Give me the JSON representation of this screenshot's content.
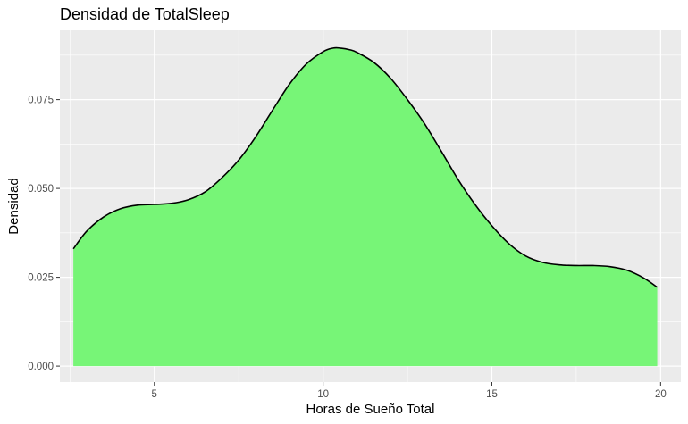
{
  "chart_data": {
    "type": "area",
    "title": "Densidad de TotalSleep",
    "xlabel": "Horas de Sueño Total",
    "ylabel": "Densidad",
    "xlim": [
      2.2,
      20.6
    ],
    "ylim": [
      -0.0045,
      0.0945
    ],
    "x_ticks": [
      5,
      10,
      15,
      20
    ],
    "x_tick_labels": [
      "5",
      "10",
      "15",
      "20"
    ],
    "y_ticks": [
      0,
      0.025,
      0.05,
      0.075
    ],
    "y_tick_labels": [
      "0.000",
      "0.025",
      "0.050",
      "0.075"
    ],
    "grid": true,
    "fill_color": "#77F577",
    "line_color": "#000000",
    "panel_background": "#EBEBEB",
    "grid_color": "#FFFFFF",
    "x": [
      2.6,
      3.0,
      3.5,
      4.0,
      4.5,
      5.0,
      5.5,
      6.0,
      6.5,
      7.0,
      7.5,
      8.0,
      8.5,
      9.0,
      9.5,
      10.0,
      10.3,
      10.5,
      10.8,
      11.0,
      11.5,
      12.0,
      12.5,
      13.0,
      13.5,
      14.0,
      14.5,
      15.0,
      15.5,
      16.0,
      16.5,
      17.0,
      17.5,
      18.0,
      18.5,
      19.0,
      19.5,
      19.9
    ],
    "y": [
      0.033,
      0.038,
      0.042,
      0.0443,
      0.0453,
      0.0455,
      0.0458,
      0.0468,
      0.049,
      0.053,
      0.058,
      0.0645,
      0.072,
      0.0793,
      0.085,
      0.0885,
      0.0895,
      0.0895,
      0.089,
      0.0883,
      0.0855,
      0.081,
      0.075,
      0.0683,
      0.0605,
      0.0525,
      0.0455,
      0.0395,
      0.0345,
      0.031,
      0.0292,
      0.0285,
      0.0283,
      0.0283,
      0.028,
      0.027,
      0.0248,
      0.0222
    ]
  }
}
